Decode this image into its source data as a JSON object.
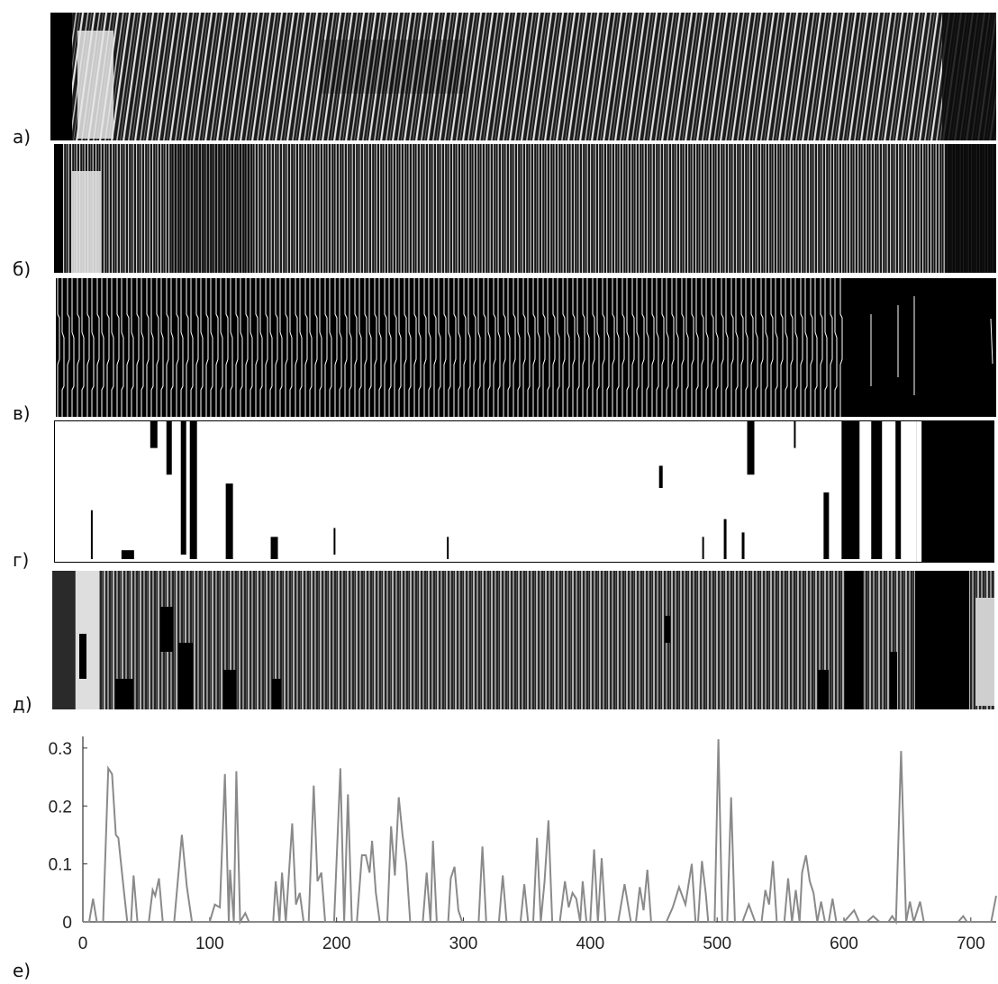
{
  "panels": [
    {
      "id": "a",
      "label": "а)"
    },
    {
      "id": "b",
      "label": "б)"
    },
    {
      "id": "v",
      "label": "в)"
    },
    {
      "id": "g",
      "label": "г)"
    },
    {
      "id": "d",
      "label": "д)"
    },
    {
      "id": "e",
      "label": "е)"
    }
  ],
  "chart_data": {
    "type": "line",
    "title": "",
    "xlabel": "",
    "ylabel": "",
    "xlim": [
      0,
      720
    ],
    "ylim": [
      0,
      0.32
    ],
    "xticks": [
      0,
      100,
      200,
      300,
      400,
      500,
      600,
      700
    ],
    "yticks": [
      0,
      0.1,
      0.2,
      0.3
    ],
    "ytick_labels": [
      "0",
      "0.1",
      "0.2",
      "0.3"
    ],
    "grid": false,
    "line_color": "#8a8a8a",
    "series": [
      {
        "values": [
          [
            0,
            0
          ],
          [
            5,
            0
          ],
          [
            8,
            0.04
          ],
          [
            11,
            0
          ],
          [
            16,
            0
          ],
          [
            20,
            0.265
          ],
          [
            23,
            0.255
          ],
          [
            26,
            0.15
          ],
          [
            28,
            0.145
          ],
          [
            32,
            0.06
          ],
          [
            35,
            0
          ],
          [
            38,
            0
          ],
          [
            40,
            0.08
          ],
          [
            43,
            0
          ],
          [
            52,
            0
          ],
          [
            55,
            0.055
          ],
          [
            57,
            0.045
          ],
          [
            60,
            0.075
          ],
          [
            63,
            0
          ],
          [
            72,
            0
          ],
          [
            78,
            0.15
          ],
          [
            82,
            0.06
          ],
          [
            86,
            0
          ],
          [
            100,
            0
          ],
          [
            104,
            0.03
          ],
          [
            108,
            0.025
          ],
          [
            112,
            0.255
          ],
          [
            115,
            0
          ],
          [
            116,
            0.09
          ],
          [
            119,
            0
          ],
          [
            121,
            0.26
          ],
          [
            124,
            0
          ],
          [
            128,
            0.015
          ],
          [
            131,
            0
          ],
          [
            150,
            0
          ],
          [
            152,
            0.07
          ],
          [
            155,
            0
          ],
          [
            157,
            0.085
          ],
          [
            160,
            0
          ],
          [
            165,
            0.17
          ],
          [
            168,
            0.03
          ],
          [
            171,
            0.05
          ],
          [
            174,
            0
          ],
          [
            178,
            0
          ],
          [
            182,
            0.235
          ],
          [
            185,
            0.07
          ],
          [
            188,
            0.085
          ],
          [
            191,
            0
          ],
          [
            198,
            0
          ],
          [
            203,
            0.265
          ],
          [
            206,
            0
          ],
          [
            209,
            0.22
          ],
          [
            212,
            0
          ],
          [
            216,
            0
          ],
          [
            220,
            0.115
          ],
          [
            223,
            0.115
          ],
          [
            226,
            0.085
          ],
          [
            228,
            0.14
          ],
          [
            231,
            0.05
          ],
          [
            234,
            0
          ],
          [
            240,
            0
          ],
          [
            243,
            0.165
          ],
          [
            246,
            0.08
          ],
          [
            249,
            0.215
          ],
          [
            252,
            0.15
          ],
          [
            255,
            0.1
          ],
          [
            258,
            0
          ],
          [
            268,
            0
          ],
          [
            271,
            0.085
          ],
          [
            274,
            0
          ],
          [
            276,
            0.14
          ],
          [
            279,
            0
          ],
          [
            288,
            0
          ],
          [
            290,
            0.075
          ],
          [
            293,
            0.095
          ],
          [
            296,
            0.02
          ],
          [
            299,
            0
          ],
          [
            312,
            0
          ],
          [
            315,
            0.13
          ],
          [
            318,
            0
          ],
          [
            328,
            0
          ],
          [
            331,
            0.08
          ],
          [
            334,
            0
          ],
          [
            345,
            0
          ],
          [
            348,
            0.065
          ],
          [
            351,
            0
          ],
          [
            355,
            0
          ],
          [
            358,
            0.145
          ],
          [
            361,
            0
          ],
          [
            364,
            0.07
          ],
          [
            367,
            0.175
          ],
          [
            370,
            0
          ],
          [
            376,
            0
          ],
          [
            380,
            0.07
          ],
          [
            383,
            0.025
          ],
          [
            386,
            0.05
          ],
          [
            389,
            0.04
          ],
          [
            392,
            0
          ],
          [
            394,
            0.07
          ],
          [
            397,
            0
          ],
          [
            400,
            0
          ],
          [
            403,
            0.125
          ],
          [
            406,
            0
          ],
          [
            409,
            0.11
          ],
          [
            412,
            0
          ],
          [
            422,
            0
          ],
          [
            427,
            0.065
          ],
          [
            432,
            0
          ],
          [
            436,
            0
          ],
          [
            439,
            0.06
          ],
          [
            442,
            0.02
          ],
          [
            445,
            0.09
          ],
          [
            448,
            0
          ],
          [
            460,
            0
          ],
          [
            465,
            0.025
          ],
          [
            470,
            0.06
          ],
          [
            475,
            0.03
          ],
          [
            480,
            0.1
          ],
          [
            483,
            0
          ],
          [
            485,
            0
          ],
          [
            488,
            0.105
          ],
          [
            491,
            0.05
          ],
          [
            493,
            0
          ],
          [
            498,
            0
          ],
          [
            501,
            0.315
          ],
          [
            504,
            0
          ],
          [
            508,
            0
          ],
          [
            511,
            0.215
          ],
          [
            514,
            0
          ],
          [
            520,
            0
          ],
          [
            525,
            0.03
          ],
          [
            530,
            0
          ],
          [
            535,
            0
          ],
          [
            538,
            0.055
          ],
          [
            541,
            0.03
          ],
          [
            544,
            0.105
          ],
          [
            547,
            0
          ],
          [
            553,
            0
          ],
          [
            556,
            0.075
          ],
          [
            559,
            0
          ],
          [
            562,
            0.055
          ],
          [
            565,
            0
          ],
          [
            567,
            0.085
          ],
          [
            570,
            0.115
          ],
          [
            573,
            0.07
          ],
          [
            576,
            0.05
          ],
          [
            579,
            0
          ],
          [
            582,
            0.035
          ],
          [
            585,
            0
          ],
          [
            588,
            0
          ],
          [
            591,
            0.04
          ],
          [
            594,
            0
          ],
          [
            600,
            0
          ],
          [
            608,
            0.02
          ],
          [
            612,
            0
          ],
          [
            618,
            0
          ],
          [
            623,
            0.01
          ],
          [
            628,
            0
          ],
          [
            635,
            0
          ],
          [
            638,
            0.01
          ],
          [
            641,
            0
          ],
          [
            645,
            0.295
          ],
          [
            649,
            0
          ],
          [
            652,
            0.035
          ],
          [
            655,
            0
          ],
          [
            660,
            0.035
          ],
          [
            663,
            0
          ],
          [
            690,
            0
          ],
          [
            694,
            0.01
          ],
          [
            697,
            0
          ],
          [
            716,
            0
          ],
          [
            720,
            0.045
          ]
        ]
      }
    ]
  }
}
